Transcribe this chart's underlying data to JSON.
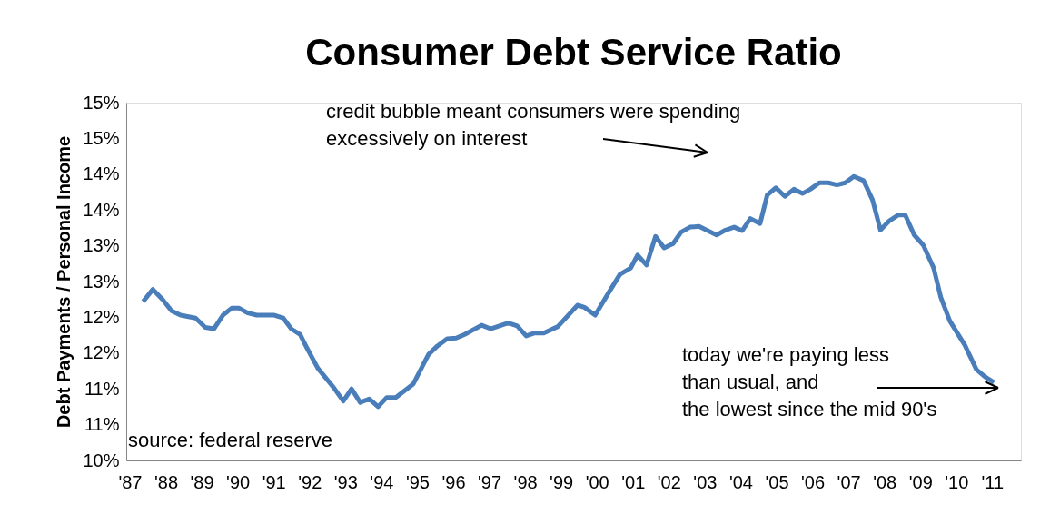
{
  "chart_data": {
    "type": "line",
    "title": "Consumer Debt Service Ratio",
    "ylabel": "Debt Payments / Personal Income",
    "annotations": [
      "credit bubble meant consumers were spending\nexcessively on interest",
      "today we're paying less\nthan usual, and\nthe lowest since the mid 90's",
      "source: federal reserve"
    ],
    "x": [
      1987.37,
      1987.64,
      1987.91,
      1988.16,
      1988.41,
      1988.83,
      1989.1,
      1989.34,
      1989.59,
      1989.84,
      1990.03,
      1990.28,
      1990.53,
      1991.02,
      1991.27,
      1991.49,
      1991.74,
      1991.93,
      1992.23,
      1992.67,
      1992.94,
      1993.17,
      1993.41,
      1993.66,
      1993.91,
      1994.15,
      1994.4,
      1994.89,
      1995.31,
      1995.56,
      1995.83,
      1996.08,
      1996.32,
      1996.79,
      1997.04,
      1997.53,
      1997.78,
      1998.03,
      1998.27,
      1998.52,
      1998.91,
      1999.46,
      1999.65,
      1999.95,
      2000.32,
      2000.64,
      2000.94,
      2001.13,
      2001.38,
      2001.63,
      2001.87,
      2002.12,
      2002.34,
      2002.59,
      2002.84,
      2003.33,
      2003.58,
      2003.82,
      2004.04,
      2004.27,
      2004.54,
      2004.74,
      2004.98,
      2005.23,
      2005.48,
      2005.72,
      2005.94,
      2006.19,
      2006.44,
      2006.68,
      2006.91,
      2007.15,
      2007.42,
      2007.67,
      2007.89,
      2008.14,
      2008.39,
      2008.58,
      2008.83,
      2009.08,
      2009.37,
      2009.57,
      2009.82,
      2010.24,
      2010.56,
      2010.8,
      2011.05
    ],
    "series": [
      {
        "color": "#4a7ebb",
        "values": [
          12.22,
          12.39,
          12.25,
          12.09,
          12.03,
          11.99,
          11.86,
          11.84,
          12.03,
          12.13,
          12.13,
          12.06,
          12.03,
          12.03,
          11.99,
          11.84,
          11.76,
          11.57,
          11.29,
          11.02,
          10.83,
          11.0,
          10.81,
          10.86,
          10.75,
          10.88,
          10.88,
          11.07,
          11.48,
          11.6,
          11.7,
          11.71,
          11.76,
          11.89,
          11.84,
          11.92,
          11.88,
          11.74,
          11.78,
          11.78,
          11.87,
          12.17,
          12.14,
          12.03,
          12.34,
          12.6,
          12.69,
          12.87,
          12.73,
          13.13,
          12.97,
          13.03,
          13.19,
          13.26,
          13.27,
          13.15,
          13.22,
          13.26,
          13.21,
          13.38,
          13.31,
          13.71,
          13.81,
          13.69,
          13.79,
          13.73,
          13.79,
          13.88,
          13.88,
          13.85,
          13.88,
          13.97,
          13.91,
          13.64,
          13.22,
          13.35,
          13.43,
          13.43,
          13.15,
          13.01,
          12.69,
          12.28,
          11.95,
          11.61,
          11.27,
          11.17,
          11.09
        ]
      }
    ],
    "xlim": [
      1986.9,
      2011.8
    ],
    "xticks": [
      {
        "value": 1987,
        "label": "'87"
      },
      {
        "value": 1988,
        "label": "'88"
      },
      {
        "value": 1989,
        "label": "'89"
      },
      {
        "value": 1990,
        "label": "'90"
      },
      {
        "value": 1991,
        "label": "'91"
      },
      {
        "value": 1992,
        "label": "'92"
      },
      {
        "value": 1993,
        "label": "'93"
      },
      {
        "value": 1994,
        "label": "'94"
      },
      {
        "value": 1995,
        "label": "'95"
      },
      {
        "value": 1996,
        "label": "'96"
      },
      {
        "value": 1997,
        "label": "'97"
      },
      {
        "value": 1998,
        "label": "'98"
      },
      {
        "value": 1999,
        "label": "'99"
      },
      {
        "value": 2000,
        "label": "'00"
      },
      {
        "value": 2001,
        "label": "'01"
      },
      {
        "value": 2002,
        "label": "'02"
      },
      {
        "value": 2003,
        "label": "'03"
      },
      {
        "value": 2004,
        "label": "'04"
      },
      {
        "value": 2005,
        "label": "'05"
      },
      {
        "value": 2006,
        "label": "'06"
      },
      {
        "value": 2007,
        "label": "'07"
      },
      {
        "value": 2008,
        "label": "'08"
      },
      {
        "value": 2009,
        "label": "'09"
      },
      {
        "value": 2010,
        "label": "'10"
      },
      {
        "value": 2011,
        "label": "'11"
      }
    ],
    "ylim": [
      10,
      15
    ],
    "yticks": [
      {
        "value": 10,
        "label": "10%"
      },
      {
        "value": 10.5,
        "label": "11%"
      },
      {
        "value": 11,
        "label": "11%"
      },
      {
        "value": 11.5,
        "label": "12%"
      },
      {
        "value": 12,
        "label": "12%"
      },
      {
        "value": 12.5,
        "label": "13%"
      },
      {
        "value": 13,
        "label": "13%"
      },
      {
        "value": 13.5,
        "label": "14%"
      },
      {
        "value": 14,
        "label": "14%"
      },
      {
        "value": 14.5,
        "label": "15%"
      },
      {
        "value": 15,
        "label": "15%"
      }
    ],
    "grid": false,
    "legend": false,
    "line_style": "solid",
    "marker": "none"
  }
}
